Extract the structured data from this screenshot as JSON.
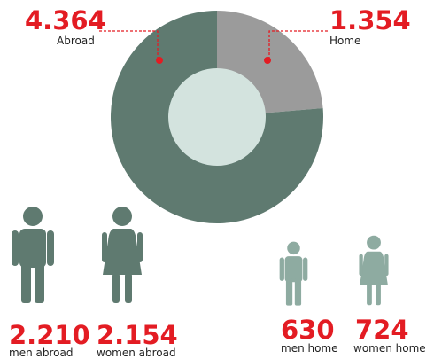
{
  "chart_data": {
    "type": "pie",
    "categories": [
      "Home",
      "Abroad"
    ],
    "values": [
      1354,
      4364
    ],
    "value_labels": [
      "1.354",
      "4.364"
    ],
    "colors": [
      "#9b9b9b",
      "#5f7a70"
    ],
    "donut": true
  },
  "breakdown": [
    {
      "label": "2.210",
      "caption": "men abroad"
    },
    {
      "label": "2.154",
      "caption": "women abroad"
    },
    {
      "label": "630",
      "caption": "men home"
    },
    {
      "label": "724",
      "caption": "women home"
    }
  ]
}
